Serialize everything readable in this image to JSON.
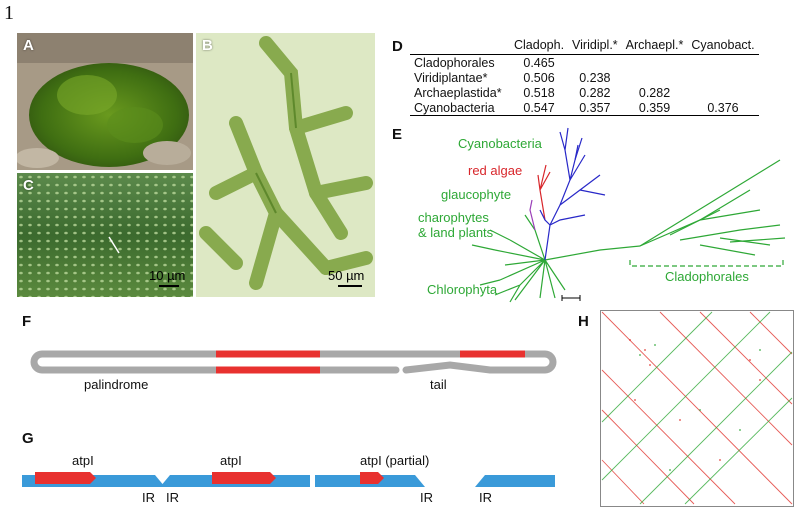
{
  "figure_number": "1",
  "panels": {
    "A": {
      "letter": "A"
    },
    "B": {
      "letter": "B",
      "scale": "50 µm"
    },
    "C": {
      "letter": "C",
      "scale": "10 µm"
    },
    "D": {
      "letter": "D",
      "columns": [
        "",
        "Cladoph.",
        "Viridipl.*",
        "Archaepl.*",
        "Cyanobact."
      ],
      "rows": [
        {
          "name": "Cladophorales",
          "values": [
            "0.465",
            "",
            "",
            ""
          ]
        },
        {
          "name": "Viridiplantae*",
          "values": [
            "0.506",
            "0.238",
            "",
            ""
          ]
        },
        {
          "name": "Archaeplastida*",
          "values": [
            "0.518",
            "0.282",
            "0.282",
            ""
          ]
        },
        {
          "name": "Cyanobacteria",
          "values": [
            "0.547",
            "0.357",
            "0.359",
            "0.376"
          ]
        }
      ]
    },
    "E": {
      "letter": "E",
      "labels": {
        "cyanobacteria": "Cyanobacteria",
        "red_algae": "red algae",
        "glaucophyte": "glaucophyte",
        "charophytes_1": "charophytes",
        "charophytes_2": "& land plants",
        "chlorophyta": "Chlorophyta",
        "cladophorales": "Cladophorales"
      },
      "colors": {
        "green": "#2ea836",
        "blue": "#2828c8",
        "red": "#d8262b",
        "purple": "#9a3fb8"
      }
    },
    "F": {
      "letter": "F",
      "palindrome": "palindrome",
      "tail": "tail"
    },
    "G": {
      "letter": "G",
      "gene1": "atpI",
      "gene2": "atpI",
      "gene3": "atpI (partial)",
      "ir1": "IR",
      "ir2": "IR",
      "ir3": "IR",
      "ir4": "IR"
    },
    "H": {
      "letter": "H"
    }
  },
  "colors": {
    "gray": "#a8a8a8",
    "red": "#e8312f",
    "blue": "#3a9ad9",
    "dot_red": "#e0322c",
    "dot_green": "#2ea836"
  }
}
